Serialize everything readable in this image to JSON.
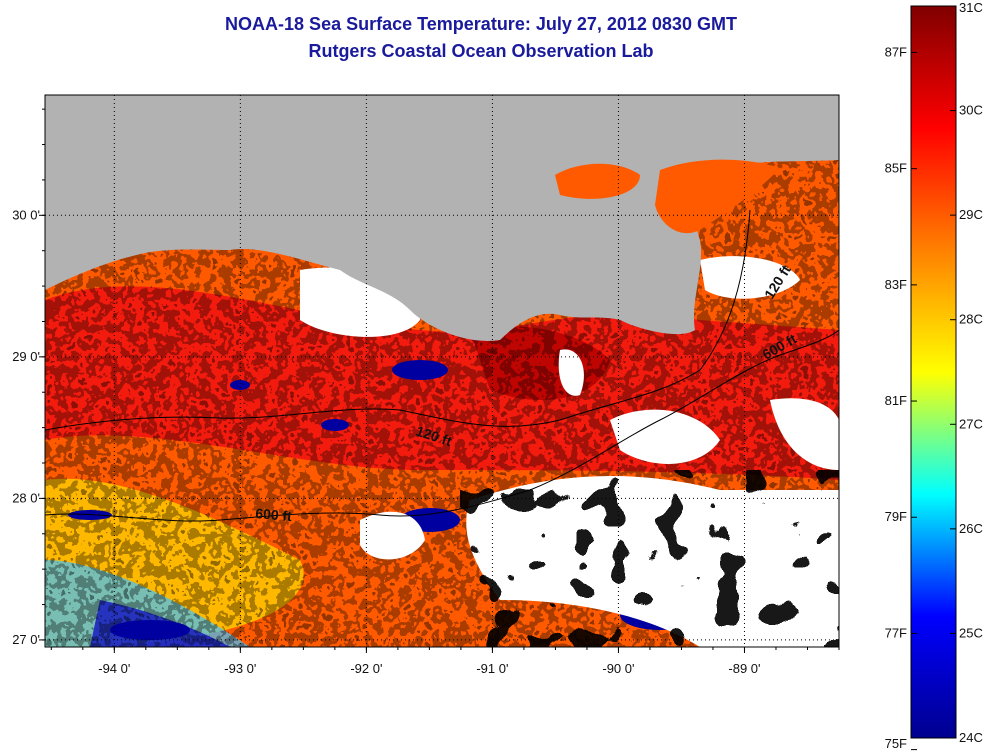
{
  "header": {
    "title": "NOAA-18 Sea Surface Temperature:  July 27, 2012 0830 GMT",
    "subtitle": "Rutgers Coastal Ocean Observation Lab"
  },
  "map": {
    "lon_range": [
      -94.55,
      -88.25
    ],
    "lat_range": [
      26.95,
      30.85
    ],
    "lon_ticks": [
      {
        "value": -94,
        "label": "-94 0'"
      },
      {
        "value": -93,
        "label": "-93 0'"
      },
      {
        "value": -92,
        "label": "-92 0'"
      },
      {
        "value": -91,
        "label": "-91 0'"
      },
      {
        "value": -90,
        "label": "-90 0'"
      },
      {
        "value": -89,
        "label": "-89 0'"
      }
    ],
    "lat_ticks": [
      {
        "value": 30,
        "label": "30 0'"
      },
      {
        "value": 29,
        "label": "29 0'"
      },
      {
        "value": 28,
        "label": "28 0'"
      },
      {
        "value": 27,
        "label": "27 0'"
      }
    ],
    "grid": true,
    "land_color": "#b2b2b2",
    "cloud_color": "#ffffff",
    "contours": [
      {
        "label": "120 ft"
      },
      {
        "label": "600 ft"
      }
    ],
    "contour_labels": [
      "120 ft",
      "600 ft",
      "120 ft",
      "600 ft"
    ]
  },
  "colorbar": {
    "celsius": [
      {
        "value": 31,
        "label": "31C"
      },
      {
        "value": 30,
        "label": "30C"
      },
      {
        "value": 29,
        "label": "29C"
      },
      {
        "value": 28,
        "label": "28C"
      },
      {
        "value": 27,
        "label": "27C"
      },
      {
        "value": 26,
        "label": "26C"
      },
      {
        "value": 25,
        "label": "25C"
      },
      {
        "value": 24,
        "label": "24C"
      }
    ],
    "fahrenheit": [
      {
        "value": 87,
        "label": "87F"
      },
      {
        "value": 85,
        "label": "85F"
      },
      {
        "value": 83,
        "label": "83F"
      },
      {
        "value": 81,
        "label": "81F"
      },
      {
        "value": 79,
        "label": "79F"
      },
      {
        "value": 77,
        "label": "77F"
      },
      {
        "value": 75,
        "label": "75F"
      }
    ],
    "range_c": [
      24,
      31
    ],
    "colormap": [
      "#00008f",
      "#0000ff",
      "#00ffff",
      "#ffff00",
      "#ff8000",
      "#ff0000",
      "#800000"
    ]
  }
}
